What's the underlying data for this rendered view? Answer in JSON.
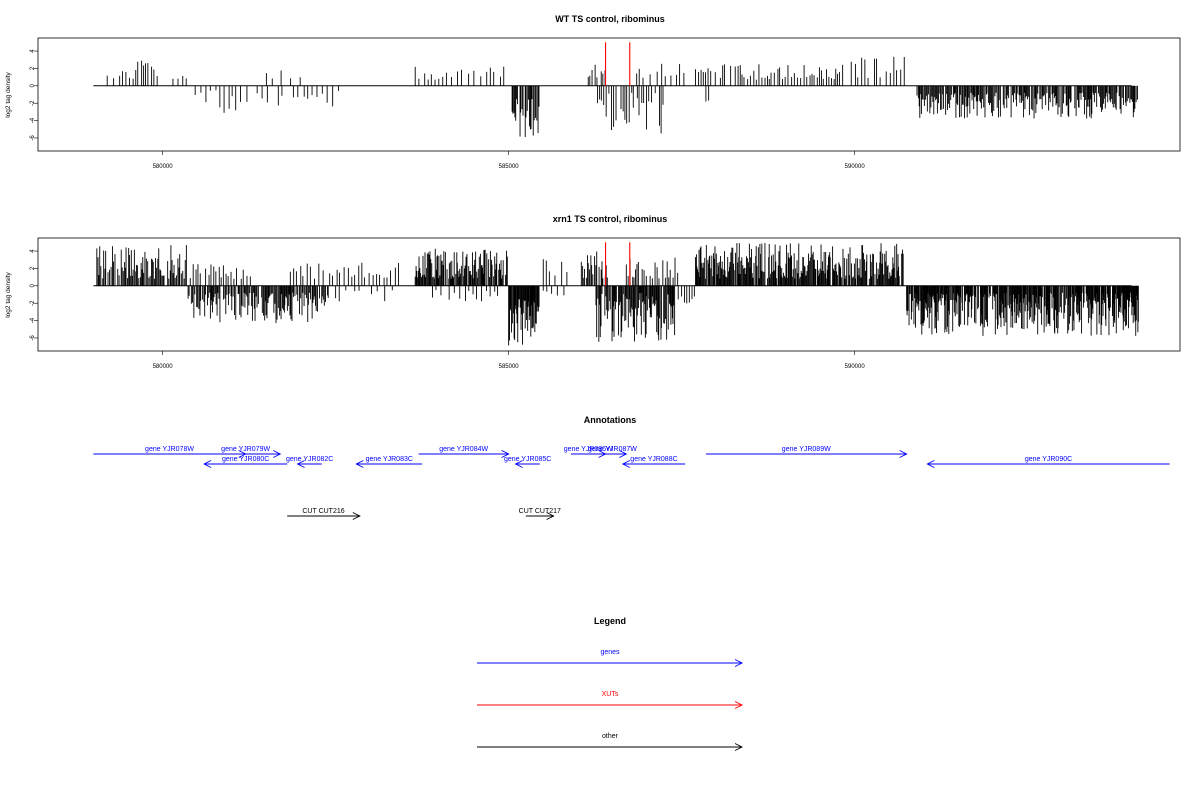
{
  "chart_data": [
    {
      "type": "bar",
      "title": "WT TS control, ribominus",
      "ylabel": "log2 tag density",
      "xlim": [
        578200,
        594700
      ],
      "ylim": [
        -7.5,
        5.5
      ],
      "x_ticks": [
        580000,
        585000,
        590000
      ],
      "y_ticks": [
        4,
        2,
        0,
        -2,
        -4,
        -6
      ],
      "xut_markers": [
        586400,
        586750
      ],
      "xut_marker_top": 5,
      "baseline_range": [
        579000,
        594000
      ],
      "seed": 11,
      "segments": [
        {
          "from": 579200,
          "to": 579950,
          "sign": 1,
          "hmin": 0.8,
          "hmax": 3.0,
          "step": 45
        },
        {
          "from": 580150,
          "to": 580350,
          "sign": 1,
          "hmin": 0.8,
          "hmax": 1.5,
          "step": 60
        },
        {
          "from": 580400,
          "to": 582600,
          "sign": -1,
          "hmin": 0.5,
          "hmax": 3.2,
          "step": 70
        },
        {
          "from": 581500,
          "to": 582000,
          "sign": 1,
          "hmin": 0.8,
          "hmax": 2.3,
          "step": 100
        },
        {
          "from": 583650,
          "to": 584950,
          "sign": 1,
          "hmin": 0.7,
          "hmax": 2.2,
          "step": 75
        },
        {
          "from": 585050,
          "to": 585450,
          "sign": -1,
          "hmin": 1.5,
          "hmax": 6.2,
          "step": 14
        },
        {
          "from": 586150,
          "to": 586400,
          "sign": 1,
          "hmin": 0.8,
          "hmax": 2.5,
          "step": 35
        },
        {
          "from": 586250,
          "to": 587250,
          "sign": -1,
          "hmin": 0.8,
          "hmax": 5.5,
          "step": 30
        },
        {
          "from": 586850,
          "to": 587550,
          "sign": 1,
          "hmin": 0.8,
          "hmax": 3.3,
          "step": 60
        },
        {
          "from": 587700,
          "to": 589900,
          "sign": 1,
          "hmin": 0.7,
          "hmax": 2.5,
          "step": 38
        },
        {
          "from": 589950,
          "to": 590750,
          "sign": 1,
          "hmin": 0.8,
          "hmax": 3.7,
          "step": 45
        },
        {
          "from": 587850,
          "to": 587950,
          "sign": -1,
          "hmin": 1.2,
          "hmax": 2.0,
          "step": 60
        },
        {
          "from": 590900,
          "to": 594100,
          "sign": -1,
          "hmin": 0.8,
          "hmax": 3.8,
          "step": 14
        }
      ]
    },
    {
      "type": "bar",
      "title": "xrn1 TS control, ribominus",
      "ylabel": "log2 tag density",
      "xlim": [
        578200,
        594700
      ],
      "ylim": [
        -7.5,
        5.5
      ],
      "x_ticks": [
        580000,
        585000,
        590000
      ],
      "y_ticks": [
        4,
        2,
        0,
        -2,
        -4,
        -6
      ],
      "xut_markers": [
        586400,
        586750
      ],
      "xut_marker_top": 5,
      "baseline_range": [
        579000,
        594000
      ],
      "seed": 29,
      "segments": [
        {
          "from": 579050,
          "to": 580350,
          "sign": 1,
          "hmin": 0.8,
          "hmax": 4.8,
          "step": 15
        },
        {
          "from": 579300,
          "to": 579400,
          "sign": -1,
          "hmin": 1.0,
          "hmax": 1.8,
          "step": 100
        },
        {
          "from": 580350,
          "to": 581850,
          "sign": -1,
          "hmin": 0.8,
          "hmax": 4.3,
          "step": 14
        },
        {
          "from": 580400,
          "to": 581300,
          "sign": 1,
          "hmin": 0.8,
          "hmax": 2.7,
          "step": 40
        },
        {
          "from": 581750,
          "to": 582400,
          "sign": -1,
          "hmin": 0.8,
          "hmax": 4.2,
          "step": 14
        },
        {
          "from": 581800,
          "to": 583450,
          "sign": 1,
          "hmin": 0.8,
          "hmax": 2.7,
          "step": 50
        },
        {
          "from": 582500,
          "to": 583400,
          "sign": -1,
          "hmin": 0.5,
          "hmax": 2.2,
          "step": 80
        },
        {
          "from": 583650,
          "to": 585000,
          "sign": 1,
          "hmin": 0.8,
          "hmax": 4.3,
          "step": 12
        },
        {
          "from": 583900,
          "to": 584900,
          "sign": -1,
          "hmin": 0.5,
          "hmax": 1.8,
          "step": 60
        },
        {
          "from": 585000,
          "to": 585450,
          "sign": -1,
          "hmin": 1.5,
          "hmax": 7.0,
          "step": 9
        },
        {
          "from": 585500,
          "to": 585900,
          "sign": 1,
          "hmin": 0.8,
          "hmax": 3.2,
          "step": 70
        },
        {
          "from": 585500,
          "to": 585800,
          "sign": -1,
          "hmin": 0.5,
          "hmax": 1.5,
          "step": 70
        },
        {
          "from": 586050,
          "to": 586450,
          "sign": 1,
          "hmin": 0.8,
          "hmax": 4.0,
          "step": 14
        },
        {
          "from": 586250,
          "to": 587400,
          "sign": -1,
          "hmin": 0.8,
          "hmax": 6.5,
          "step": 11
        },
        {
          "from": 586700,
          "to": 587450,
          "sign": 1,
          "hmin": 0.8,
          "hmax": 3.3,
          "step": 30
        },
        {
          "from": 587450,
          "to": 587700,
          "sign": -1,
          "hmin": 0.8,
          "hmax": 2.5,
          "step": 40
        },
        {
          "from": 587700,
          "to": 590700,
          "sign": 1,
          "hmin": 0.8,
          "hmax": 5.0,
          "step": 11
        },
        {
          "from": 590750,
          "to": 594100,
          "sign": -1,
          "hmin": 0.8,
          "hmax": 5.8,
          "step": 8
        }
      ]
    }
  ],
  "annotations": {
    "title": "Annotations",
    "xlim": [
      578200,
      594700
    ],
    "genes": [
      {
        "label": "gene YJR078W",
        "start": 579000,
        "end": 581200,
        "strand": "+",
        "row": 0
      },
      {
        "label": "gene YJR079W",
        "start": 580700,
        "end": 581700,
        "strand": "+",
        "row": 0
      },
      {
        "label": "gene YJR080C",
        "start": 580600,
        "end": 581800,
        "strand": "-",
        "row": 1
      },
      {
        "label": "gene YJR082C",
        "start": 581950,
        "end": 582300,
        "strand": "-",
        "row": 1
      },
      {
        "label": "gene YJR083C",
        "start": 582800,
        "end": 583750,
        "strand": "-",
        "row": 1
      },
      {
        "label": "gene YJR084W",
        "start": 583700,
        "end": 585000,
        "strand": "+",
        "row": 0
      },
      {
        "label": "gene YJR085C",
        "start": 585100,
        "end": 585450,
        "strand": "-",
        "row": 1
      },
      {
        "label": "gene YJR086W",
        "start": 585900,
        "end": 586400,
        "strand": "+",
        "row": 0
      },
      {
        "label": "gene YJR087W",
        "start": 586300,
        "end": 586700,
        "strand": "+",
        "row": 0
      },
      {
        "label": "gene YJR088C",
        "start": 586650,
        "end": 587550,
        "strand": "-",
        "row": 1
      },
      {
        "label": "gene YJR089W",
        "start": 587850,
        "end": 590750,
        "strand": "+",
        "row": 0
      },
      {
        "label": "gene YJR090C",
        "start": 591050,
        "end": 594550,
        "strand": "-",
        "row": 1
      }
    ],
    "other": [
      {
        "label": "CUT CUT216",
        "start": 581800,
        "end": 582850,
        "strand": "+"
      },
      {
        "label": "CUT CUT217",
        "start": 585250,
        "end": 585650,
        "strand": "+"
      }
    ]
  },
  "legend": {
    "title": "Legend",
    "items": [
      {
        "label": "genes",
        "color": "#0000ff"
      },
      {
        "label": "XUTs",
        "color": "#ff0000"
      },
      {
        "label": "other",
        "color": "#000000"
      }
    ]
  },
  "colors": {
    "genes": "#0000ff",
    "xuts": "#ff0000",
    "other": "#000000",
    "bars": "#000000"
  }
}
